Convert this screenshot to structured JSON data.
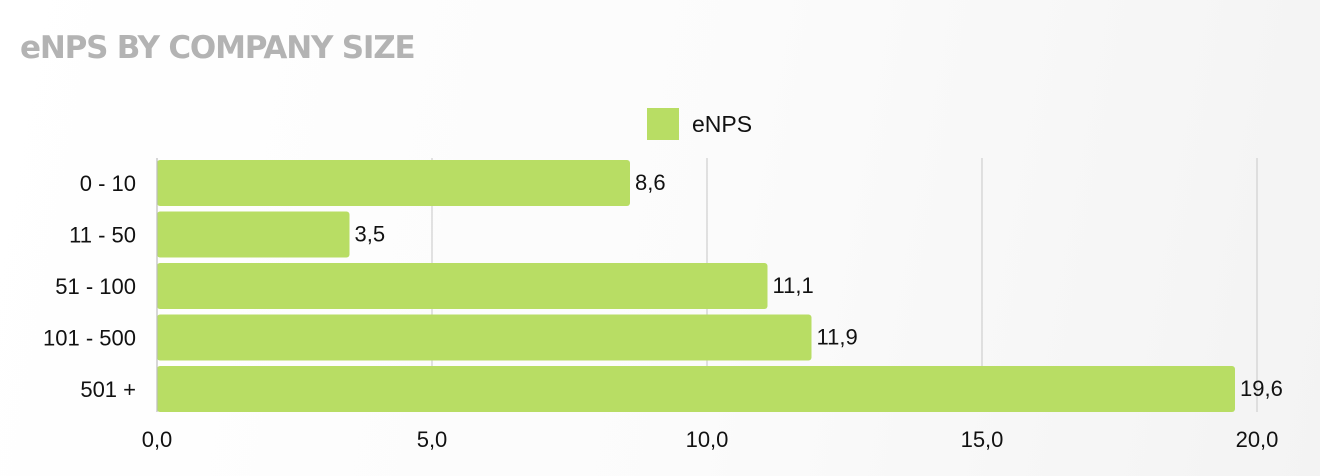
{
  "title": "eNPS BY COMPANY SIZE",
  "legend": {
    "label": "eNPS",
    "color": "#b8dd64"
  },
  "chart_data": {
    "type": "bar",
    "orientation": "horizontal",
    "title": "eNPS BY COMPANY SIZE",
    "categories": [
      "0 - 10",
      "11 - 50",
      "51 - 100",
      "101 - 500",
      "501 +"
    ],
    "series": [
      {
        "name": "eNPS",
        "values": [
          8.6,
          3.5,
          11.1,
          11.9,
          19.6
        ],
        "labels": [
          "8,6",
          "3,5",
          "11,1",
          "11,9",
          "19,6"
        ],
        "color": "#b8dd64"
      }
    ],
    "xlim": [
      0,
      20
    ],
    "xticks": [
      0,
      5,
      10,
      15,
      20
    ],
    "xtick_labels": [
      "0,0",
      "5,0",
      "10,0",
      "15,0",
      "20,0"
    ],
    "grid": "vertical",
    "legend_position": "top-center",
    "gridline_color": "#cfcfcf",
    "axis_color": "#bdbdbd"
  }
}
